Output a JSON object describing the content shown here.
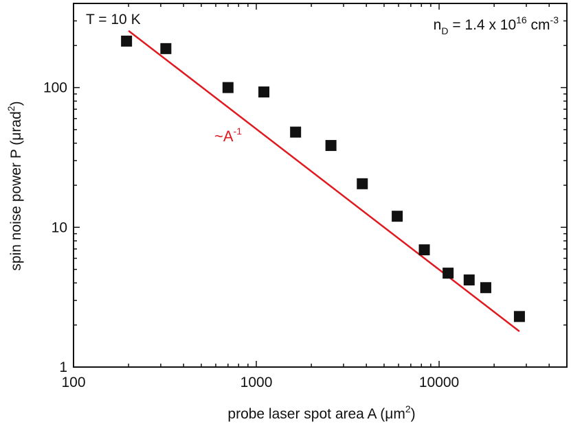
{
  "chart_data": {
    "type": "scatter",
    "title": "",
    "xlabel": {
      "main": "probe laser spot area A (",
      "greek": "μ",
      "unit": "m",
      "sup": "2",
      "close": ")"
    },
    "ylabel": {
      "main": "spin noise power P (",
      "greek": "μ",
      "unit": "rad",
      "sup": "2",
      "close": ")"
    },
    "xscale": "log",
    "yscale": "log",
    "xlim": [
      100,
      50000
    ],
    "ylim": [
      1,
      400
    ],
    "xticks": [
      100,
      1000,
      10000
    ],
    "xtick_labels": [
      "100",
      "1000",
      "10000"
    ],
    "yticks": [
      1,
      10,
      100
    ],
    "ytick_labels": [
      "1",
      "10",
      "100"
    ],
    "grid": false,
    "series": [
      {
        "marker": "square",
        "color": "#111111",
        "x": [
          195,
          320,
          700,
          1100,
          1640,
          2560,
          3800,
          5900,
          8300,
          11200,
          14600,
          18000,
          27500
        ],
        "y": [
          215,
          190,
          100,
          93,
          48,
          38.5,
          20.5,
          12,
          6.9,
          4.7,
          4.2,
          3.7,
          2.3
        ]
      },
      {
        "type": "line",
        "color": "#e0191e",
        "x": [
          200,
          27500
        ],
        "y": [
          255,
          1.8
        ],
        "label": {
          "main": "~A",
          "sup": "-1"
        }
      }
    ],
    "annotations": [
      {
        "id": "temperature",
        "text": "T = 10 K",
        "position": "top-left"
      },
      {
        "id": "density",
        "main": "n",
        "sub": "D",
        "mid": " = 1.4 x 10",
        "sup": "16",
        "unit": " cm",
        "unit_sup": "-3",
        "position": "top-right"
      }
    ],
    "colors": {
      "axis": "#111111",
      "markers": "#111111",
      "fit_line": "#e0191e"
    }
  }
}
